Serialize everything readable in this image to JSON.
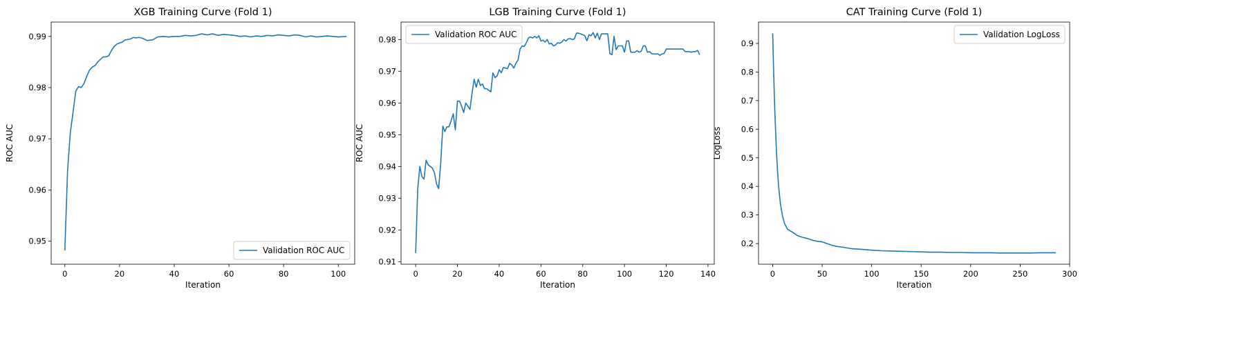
{
  "chart_data": [
    {
      "type": "line",
      "title": "XGB Training Curve (Fold 1)",
      "xlabel": "Iteration",
      "ylabel": "ROC AUC",
      "xlim": [
        -5,
        106
      ],
      "ylim": [
        0.9455,
        0.9928
      ],
      "xticks": [
        0,
        20,
        40,
        60,
        80,
        100
      ],
      "yticks": [
        0.95,
        0.96,
        0.97,
        0.98,
        0.99
      ],
      "ytick_decimals": 2,
      "legend_position": "lower-right",
      "color": "#1f77b4",
      "series": [
        {
          "name": "Validation ROC AUC",
          "points": [
            [
              0,
              0.9482
            ],
            [
              1,
              0.9638
            ],
            [
              2,
              0.9712
            ],
            [
              3,
              0.9752
            ],
            [
              4,
              0.9793
            ],
            [
              5,
              0.9802
            ],
            [
              6,
              0.98
            ],
            [
              7,
              0.9808
            ],
            [
              8,
              0.9822
            ],
            [
              9,
              0.9834
            ],
            [
              10,
              0.984
            ],
            [
              11,
              0.9843
            ],
            [
              12,
              0.985
            ],
            [
              13,
              0.9855
            ],
            [
              14,
              0.986
            ],
            [
              15,
              0.986
            ],
            [
              16,
              0.9862
            ],
            [
              17,
              0.9872
            ],
            [
              18,
              0.988
            ],
            [
              19,
              0.9885
            ],
            [
              20,
              0.9887
            ],
            [
              21,
              0.9889
            ],
            [
              22,
              0.9893
            ],
            [
              23,
              0.9894
            ],
            [
              24,
              0.9895
            ],
            [
              25,
              0.9898
            ],
            [
              26,
              0.9897
            ],
            [
              27,
              0.9898
            ],
            [
              28,
              0.9897
            ],
            [
              29,
              0.9895
            ],
            [
              30,
              0.9892
            ],
            [
              32,
              0.9893
            ],
            [
              34,
              0.9899
            ],
            [
              36,
              0.99
            ],
            [
              38,
              0.9899
            ],
            [
              40,
              0.99
            ],
            [
              42,
              0.99
            ],
            [
              44,
              0.9902
            ],
            [
              46,
              0.9901
            ],
            [
              48,
              0.9902
            ],
            [
              50,
              0.9905
            ],
            [
              52,
              0.9903
            ],
            [
              54,
              0.9905
            ],
            [
              56,
              0.9902
            ],
            [
              58,
              0.9904
            ],
            [
              60,
              0.9903
            ],
            [
              62,
              0.9902
            ],
            [
              64,
              0.99
            ],
            [
              66,
              0.9901
            ],
            [
              68,
              0.9899
            ],
            [
              70,
              0.9901
            ],
            [
              72,
              0.99
            ],
            [
              74,
              0.9902
            ],
            [
              76,
              0.9901
            ],
            [
              78,
              0.9903
            ],
            [
              80,
              0.9902
            ],
            [
              82,
              0.9901
            ],
            [
              84,
              0.9903
            ],
            [
              86,
              0.9902
            ],
            [
              88,
              0.9899
            ],
            [
              90,
              0.9901
            ],
            [
              92,
              0.9899
            ],
            [
              94,
              0.99
            ],
            [
              96,
              0.9901
            ],
            [
              98,
              0.99
            ],
            [
              100,
              0.9899
            ],
            [
              103,
              0.99
            ]
          ]
        }
      ]
    },
    {
      "type": "line",
      "title": "LGB Training Curve (Fold 1)",
      "xlabel": "Iteration",
      "ylabel": "ROC AUC",
      "xlim": [
        -7,
        143
      ],
      "ylim": [
        0.9092,
        0.9855
      ],
      "xticks": [
        0,
        20,
        40,
        60,
        80,
        100,
        120,
        140
      ],
      "yticks": [
        0.91,
        0.92,
        0.93,
        0.94,
        0.95,
        0.96,
        0.97,
        0.98
      ],
      "ytick_decimals": 2,
      "legend_position": "upper-left",
      "color": "#1f77b4",
      "series": [
        {
          "name": "Validation ROC AUC",
          "points": [
            [
              0,
              0.9127
            ],
            [
              1,
              0.933
            ],
            [
              2,
              0.94
            ],
            [
              3,
              0.9368
            ],
            [
              4,
              0.936
            ],
            [
              5,
              0.942
            ],
            [
              6,
              0.9405
            ],
            [
              7,
              0.94
            ],
            [
              8,
              0.9395
            ],
            [
              9,
              0.938
            ],
            [
              10,
              0.9345
            ],
            [
              11,
              0.933
            ],
            [
              12,
              0.941
            ],
            [
              13,
              0.9527
            ],
            [
              14,
              0.951
            ],
            [
              15,
              0.9525
            ],
            [
              16,
              0.9525
            ],
            [
              17,
              0.9545
            ],
            [
              18,
              0.9566
            ],
            [
              19,
              0.9515
            ],
            [
              20,
              0.9606
            ],
            [
              21,
              0.9606
            ],
            [
              22,
              0.959
            ],
            [
              23,
              0.957
            ],
            [
              24,
              0.96
            ],
            [
              25,
              0.959
            ],
            [
              26,
              0.958
            ],
            [
              27,
              0.963
            ],
            [
              28,
              0.9675
            ],
            [
              29,
              0.965
            ],
            [
              30,
              0.9675
            ],
            [
              31,
              0.9655
            ],
            [
              32,
              0.966
            ],
            [
              33,
              0.9645
            ],
            [
              34,
              0.9645
            ],
            [
              35,
              0.964
            ],
            [
              36,
              0.9635
            ],
            [
              37,
              0.9695
            ],
            [
              38,
              0.968
            ],
            [
              39,
              0.9685
            ],
            [
              40,
              0.9705
            ],
            [
              41,
              0.9695
            ],
            [
              42,
              0.9712
            ],
            [
              43,
              0.971
            ],
            [
              44,
              0.9708
            ],
            [
              45,
              0.9725
            ],
            [
              46,
              0.972
            ],
            [
              47,
              0.971
            ],
            [
              48,
              0.9725
            ],
            [
              49,
              0.9735
            ],
            [
              50,
              0.977
            ],
            [
              51,
              0.978
            ],
            [
              52,
              0.9778
            ],
            [
              53,
              0.979
            ],
            [
              54,
              0.9805
            ],
            [
              55,
              0.9808
            ],
            [
              56,
              0.9805
            ],
            [
              57,
              0.981
            ],
            [
              58,
              0.9805
            ],
            [
              59,
              0.9812
            ],
            [
              60,
              0.9795
            ],
            [
              61,
              0.9798
            ],
            [
              62,
              0.9792
            ],
            [
              63,
              0.98
            ],
            [
              64,
              0.9786
            ],
            [
              65,
              0.9788
            ],
            [
              66,
              0.978
            ],
            [
              67,
              0.9783
            ],
            [
              68,
              0.979
            ],
            [
              69,
              0.9788
            ],
            [
              70,
              0.9792
            ],
            [
              71,
              0.98
            ],
            [
              72,
              0.9795
            ],
            [
              73,
              0.9802
            ],
            [
              74,
              0.9803
            ],
            [
              75,
              0.98
            ],
            [
              76,
              0.9802
            ],
            [
              77,
              0.982
            ],
            [
              78,
              0.982
            ],
            [
              79,
              0.9818
            ],
            [
              80,
              0.9815
            ],
            [
              81,
              0.9812
            ],
            [
              82,
              0.9796
            ],
            [
              83,
              0.9815
            ],
            [
              84,
              0.9812
            ],
            [
              85,
              0.9822
            ],
            [
              86,
              0.9805
            ],
            [
              87,
              0.982
            ],
            [
              88,
              0.98
            ],
            [
              89,
              0.9818
            ],
            [
              90,
              0.9818
            ],
            [
              91,
              0.9818
            ],
            [
              92,
              0.9818
            ],
            [
              93,
              0.9756
            ],
            [
              94,
              0.9752
            ],
            [
              95,
              0.981
            ],
            [
              96,
              0.9768
            ],
            [
              97,
              0.978
            ],
            [
              98,
              0.978
            ],
            [
              99,
              0.978
            ],
            [
              100,
              0.976
            ],
            [
              101,
              0.9795
            ],
            [
              102,
              0.9796
            ],
            [
              103,
              0.976
            ],
            [
              104,
              0.976
            ],
            [
              105,
              0.976
            ],
            [
              106,
              0.9765
            ],
            [
              107,
              0.976
            ],
            [
              108,
              0.9763
            ],
            [
              109,
              0.978
            ],
            [
              110,
              0.978
            ],
            [
              111,
              0.976
            ],
            [
              112,
              0.9762
            ],
            [
              113,
              0.9755
            ],
            [
              114,
              0.9755
            ],
            [
              115,
              0.9754
            ],
            [
              116,
              0.9755
            ],
            [
              117,
              0.975
            ],
            [
              118,
              0.9755
            ],
            [
              119,
              0.9756
            ],
            [
              120,
              0.977
            ],
            [
              121,
              0.977
            ],
            [
              122,
              0.977
            ],
            [
              123,
              0.977
            ],
            [
              124,
              0.977
            ],
            [
              125,
              0.977
            ],
            [
              126,
              0.977
            ],
            [
              127,
              0.977
            ],
            [
              128,
              0.977
            ],
            [
              129,
              0.9762
            ],
            [
              130,
              0.9762
            ],
            [
              131,
              0.9762
            ],
            [
              132,
              0.976
            ],
            [
              133,
              0.9762
            ],
            [
              134,
              0.9762
            ],
            [
              135,
              0.9766
            ],
            [
              136,
              0.9752
            ]
          ]
        }
      ]
    },
    {
      "type": "line",
      "title": "CAT Training Curve (Fold 1)",
      "xlabel": "Iteration",
      "ylabel": "LogLoss",
      "xlim": [
        -14.3,
        300
      ],
      "ylim": [
        0.128,
        0.9745
      ],
      "xticks": [
        0,
        50,
        100,
        150,
        200,
        250,
        300
      ],
      "yticks": [
        0.2,
        0.3,
        0.4,
        0.5,
        0.6,
        0.7,
        0.8,
        0.9
      ],
      "ytick_decimals": 1,
      "legend_position": "upper-right",
      "color": "#1f77b4",
      "series": [
        {
          "name": "Validation LogLoss",
          "points": [
            [
              0,
              0.935
            ],
            [
              1,
              0.8
            ],
            [
              2,
              0.68
            ],
            [
              3,
              0.59
            ],
            [
              4,
              0.51
            ],
            [
              5,
              0.45
            ],
            [
              6,
              0.4
            ],
            [
              7,
              0.365
            ],
            [
              8,
              0.335
            ],
            [
              10,
              0.295
            ],
            [
              12,
              0.27
            ],
            [
              15,
              0.25
            ],
            [
              20,
              0.24
            ],
            [
              25,
              0.228
            ],
            [
              30,
              0.222
            ],
            [
              35,
              0.218
            ],
            [
              40,
              0.212
            ],
            [
              45,
              0.208
            ],
            [
              50,
              0.206
            ],
            [
              55,
              0.2
            ],
            [
              60,
              0.194
            ],
            [
              65,
              0.19
            ],
            [
              70,
              0.188
            ],
            [
              75,
              0.185
            ],
            [
              80,
              0.182
            ],
            [
              90,
              0.18
            ],
            [
              100,
              0.177
            ],
            [
              110,
              0.175
            ],
            [
              120,
              0.174
            ],
            [
              130,
              0.173
            ],
            [
              140,
              0.172
            ],
            [
              150,
              0.171
            ],
            [
              160,
              0.17
            ],
            [
              170,
              0.17
            ],
            [
              180,
              0.169
            ],
            [
              190,
              0.169
            ],
            [
              200,
              0.168
            ],
            [
              210,
              0.168
            ],
            [
              220,
              0.168
            ],
            [
              230,
              0.167
            ],
            [
              240,
              0.167
            ],
            [
              250,
              0.167
            ],
            [
              260,
              0.167
            ],
            [
              270,
              0.168
            ],
            [
              280,
              0.168
            ],
            [
              286,
              0.168
            ]
          ]
        }
      ]
    }
  ]
}
